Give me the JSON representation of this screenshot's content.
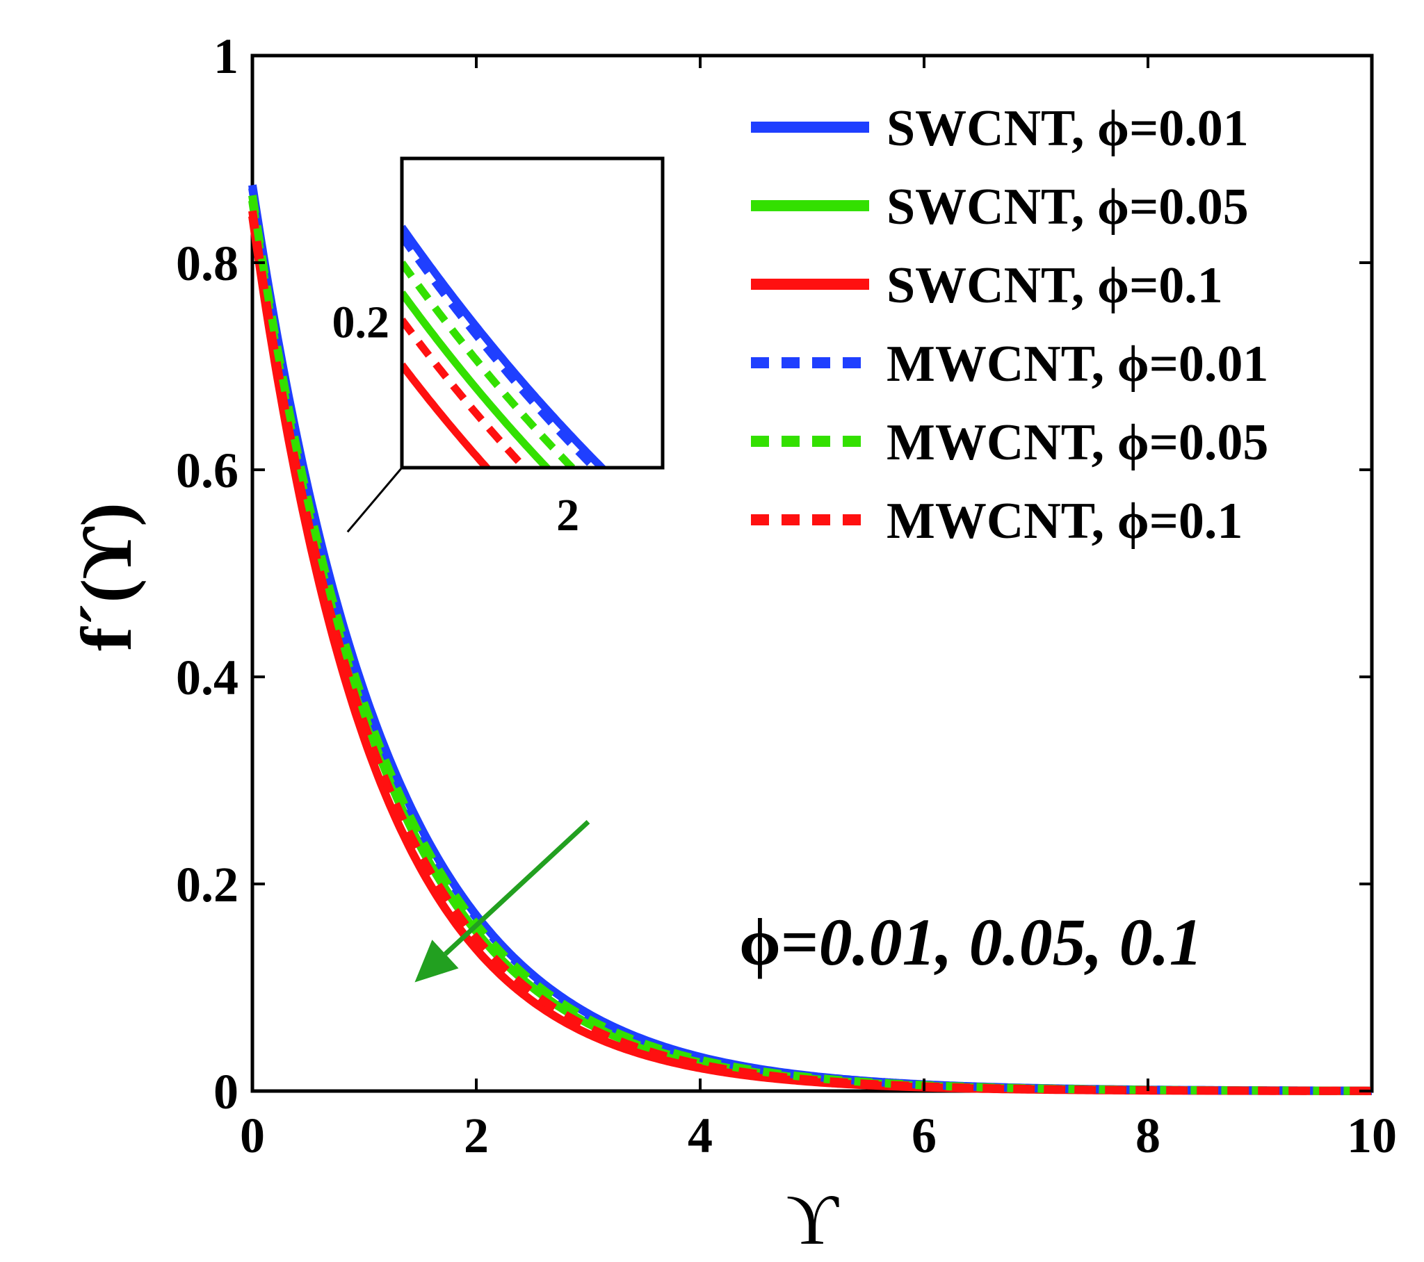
{
  "chart_data": {
    "type": "line",
    "title": "",
    "xlabel": "ϒ",
    "ylabel": "f´(ϒ)",
    "xlim": [
      0,
      10
    ],
    "ylim": [
      0,
      1
    ],
    "xticks": [
      0,
      2,
      4,
      6,
      8,
      10
    ],
    "yticks": [
      0,
      0.2,
      0.4,
      0.6,
      0.8,
      1
    ],
    "xtick_labels": [
      "0",
      "2",
      "4",
      "6",
      "8",
      "10"
    ],
    "ytick_labels": [
      "0",
      "0.2",
      "0.4",
      "0.6",
      "0.8",
      "1"
    ],
    "legend_position": "top-right",
    "series": [
      {
        "name": "SWCNT, ϕ=0.01",
        "color": "#1f3fff",
        "style": "solid",
        "y0": 0.875,
        "decay": 0.82
      },
      {
        "name": "SWCNT, ϕ=0.05",
        "color": "#33e000",
        "style": "solid",
        "y0": 0.86,
        "decay": 0.86
      },
      {
        "name": "SWCNT, ϕ=0.1",
        "color": "#ff1010",
        "style": "solid",
        "y0": 0.845,
        "decay": 0.91
      },
      {
        "name": "MWCNT, ϕ=0.01",
        "color": "#1f3fff",
        "style": "dashed",
        "y0": 0.872,
        "decay": 0.825
      },
      {
        "name": "MWCNT, ϕ=0.05",
        "color": "#33e000",
        "style": "dashed",
        "y0": 0.865,
        "decay": 0.84
      },
      {
        "name": "MWCNT, ϕ=0.1",
        "color": "#ff1010",
        "style": "dashed",
        "y0": 0.85,
        "decay": 0.875
      }
    ],
    "annotation": {
      "prefix": "ϕ=",
      "text": "0.01, 0.05, 0.1",
      "arrow_color": "#22a020",
      "arrow_from": [
        3.0,
        0.26
      ],
      "arrow_to": [
        1.45,
        0.105
      ]
    },
    "inset": {
      "xlim": [
        1.65,
        2.2
      ],
      "ylim": [
        0.16,
        0.245
      ],
      "xtick_labels": [
        "2"
      ],
      "ytick_labels": [
        "0.2"
      ],
      "xticks": [
        2
      ],
      "yticks": [
        0.2
      ],
      "zoom_anchor": [
        0.85,
        0.54
      ]
    }
  }
}
